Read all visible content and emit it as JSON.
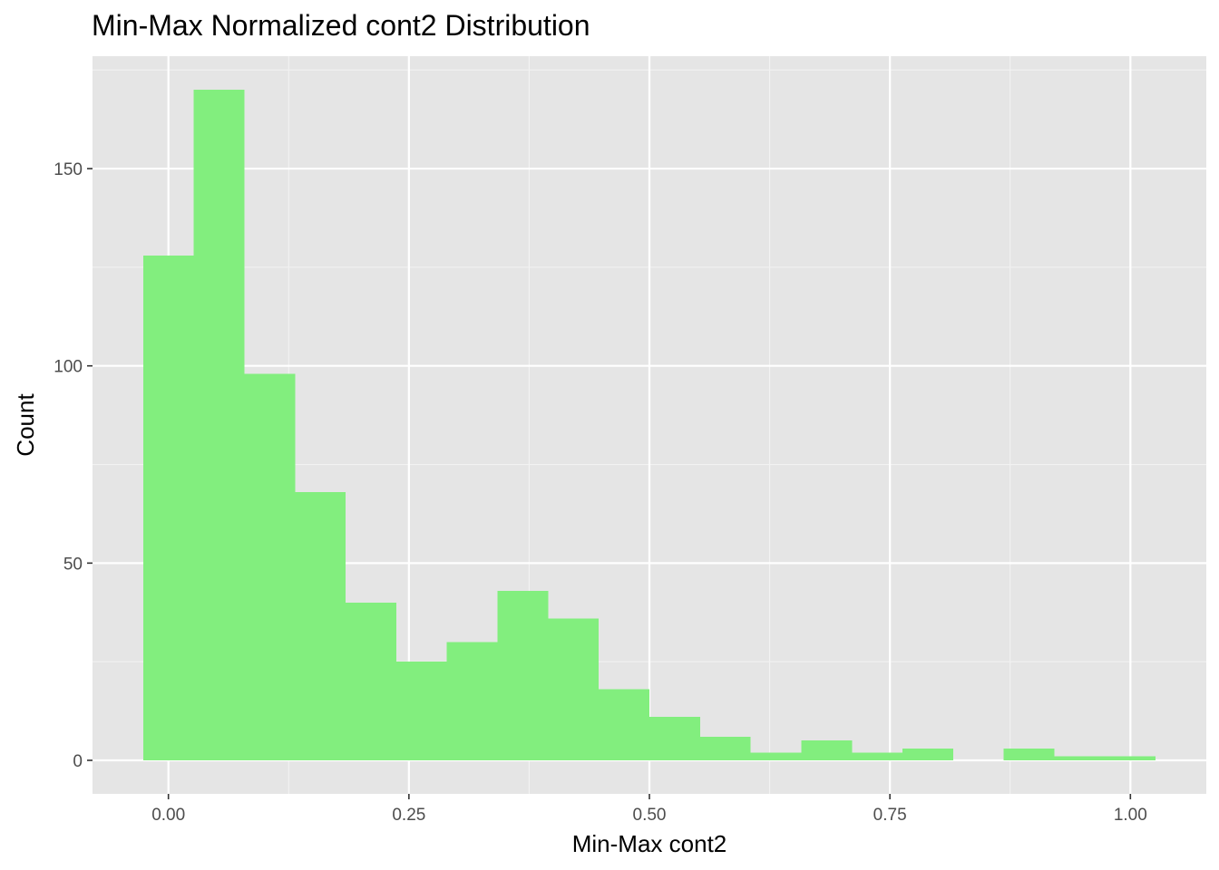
{
  "chart_data": {
    "type": "bar",
    "title": "Min-Max Normalized cont2 Distribution",
    "xlabel": "Min-Max cont2",
    "ylabel": "Count",
    "bin_width": 0.0526,
    "bin_centers": [
      0.0,
      0.0526,
      0.1053,
      0.1579,
      0.2105,
      0.2632,
      0.3158,
      0.3684,
      0.4211,
      0.4737,
      0.5263,
      0.5789,
      0.6316,
      0.6842,
      0.7368,
      0.7895,
      0.8421,
      0.8947,
      0.9474,
      1.0
    ],
    "values": [
      128,
      170,
      98,
      68,
      40,
      25,
      30,
      43,
      36,
      18,
      11,
      6,
      2,
      5,
      2,
      3,
      0,
      3,
      1,
      1
    ],
    "xlim": [
      -0.0789,
      1.0789
    ],
    "ylim": [
      -8.5,
      178.5
    ],
    "x_ticks": [
      0.0,
      0.25,
      0.5,
      0.75,
      1.0
    ],
    "x_tick_labels": [
      "0.00",
      "0.25",
      "0.50",
      "0.75",
      "1.00"
    ],
    "y_ticks": [
      0,
      50,
      100,
      150
    ],
    "y_tick_labels": [
      "0",
      "50",
      "100",
      "150"
    ],
    "grid": true,
    "colors": {
      "bar_fill": "#82ee7e",
      "panel_background": "#e5e5e5",
      "grid_major": "#ffffff",
      "grid_minor": "#f2f2f2",
      "tick_text": "#4d4d4d",
      "tick_mark": "#333333"
    }
  }
}
